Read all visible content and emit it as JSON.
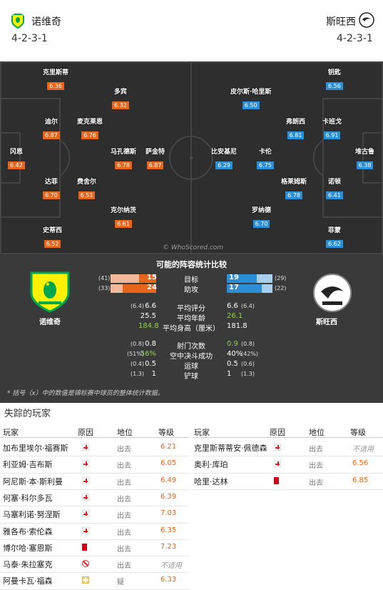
{
  "header": {
    "home": {
      "name": "诺维奇",
      "formation": "4-2-3-1"
    },
    "away": {
      "name": "斯旺西",
      "formation": "4-2-3-1"
    }
  },
  "pitch": {
    "watermark": "© WhoScored.com",
    "home_players": [
      {
        "name": "克里斯蒂",
        "rating": "6.36"
      },
      {
        "name": "多宾",
        "rating": "6.32"
      },
      {
        "name": "迪尔",
        "rating": "6.87"
      },
      {
        "name": "麦克莱恩",
        "rating": "6.76"
      },
      {
        "name": "冈恩",
        "rating": "6.42"
      },
      {
        "name": "马孔德斯",
        "rating": "6.78"
      },
      {
        "name": "萨金特",
        "rating": "6.87"
      },
      {
        "name": "达菲",
        "rating": "6.70"
      },
      {
        "name": "费舍尔",
        "rating": "6.51"
      },
      {
        "name": "克尔纳茨",
        "rating": "6.61"
      },
      {
        "name": "史蒂西",
        "rating": "6.52"
      }
    ],
    "away_players": [
      {
        "name": "钥匙",
        "rating": "6.56"
      },
      {
        "name": "皮尔斯·哈里斯",
        "rating": "6.50"
      },
      {
        "name": "弗朗西",
        "rating": "6.81"
      },
      {
        "name": "卡班戈",
        "rating": "6.91"
      },
      {
        "name": "比安基尼",
        "rating": "6.29"
      },
      {
        "name": "卡伦",
        "rating": "6.75"
      },
      {
        "name": "堆古鲁",
        "rating": "6.38"
      },
      {
        "name": "格莱姆斯",
        "rating": "6.78"
      },
      {
        "name": "诺顿",
        "rating": "6.41"
      },
      {
        "name": "罗纳德",
        "rating": "6.70"
      },
      {
        "name": "菲蒙",
        "rating": "6.62"
      }
    ]
  },
  "compare": {
    "title": "可能的阵容统计比较",
    "home_name": "诺维奇",
    "away_name": "斯旺西",
    "bars": [
      {
        "label": "目标",
        "home": "15",
        "home_total": "(41)",
        "away": "19",
        "away_total": "(29)",
        "home_frac": 0.37,
        "away_frac": 0.66
      },
      {
        "label": "助攻",
        "home": "24",
        "home_total": "(33)",
        "away": "17",
        "away_total": "(22)",
        "home_frac": 0.73,
        "away_frac": 0.77
      }
    ],
    "stats1": [
      {
        "label": "平均评分",
        "home": "6.6",
        "home_sub": "(6.4)",
        "away": "6.6",
        "away_sub": "(6.4)",
        "hl": "none"
      },
      {
        "label": "平均年龄",
        "home": "25.5",
        "home_sub": "",
        "away": "26.1",
        "away_sub": "",
        "hl": "away"
      },
      {
        "label": "平均身高（厘米）",
        "home": "184.8",
        "home_sub": "",
        "away": "181.8",
        "away_sub": "",
        "hl": "home"
      }
    ],
    "stats2": [
      {
        "label": "射门次数",
        "home": "0.8",
        "home_sub": "(0.8)",
        "away": "0.9",
        "away_sub": "(0.8)",
        "hl": "away"
      },
      {
        "label": "空中决斗成功",
        "home": "56%",
        "home_sub": "(51%)",
        "away": "40%",
        "away_sub": "(42%)",
        "hl": "home"
      },
      {
        "label": "运球",
        "home": "0.5",
        "home_sub": "(0.4)",
        "away": "0.5",
        "away_sub": "(0.6)",
        "hl": "none"
      },
      {
        "label": "铲球",
        "home": "1",
        "home_sub": "(1.3)",
        "away": "1",
        "away_sub": "(1.3)",
        "hl": "none"
      }
    ],
    "footnote": "* 括号（x）中的数值是锦标赛中球员的整体统计数据。"
  },
  "missing": {
    "title": "失踪的玩家",
    "headers": {
      "player": "玩家",
      "reason": "原因",
      "status": "地位",
      "rating": "等级"
    },
    "home": [
      {
        "name": "加布里埃尔·福赛斯",
        "reason": "injury",
        "status": "出去",
        "rating": "6.21"
      },
      {
        "name": "利亚姆·吉布斯",
        "reason": "injury",
        "status": "出去",
        "rating": "6.05"
      },
      {
        "name": "阿尼斯·本·斯利曼",
        "reason": "injury",
        "status": "出去",
        "rating": "6.49"
      },
      {
        "name": "何塞·科尔多瓦",
        "reason": "injury",
        "status": "出去",
        "rating": "6.39"
      },
      {
        "name": "马塞利诺·努涅斯",
        "reason": "injury",
        "status": "出去",
        "rating": "7.03"
      },
      {
        "name": "雅各布·索伦森",
        "reason": "injury",
        "status": "出去",
        "rating": "6.35"
      },
      {
        "name": "博尔哈·塞恩斯",
        "reason": "redcard",
        "status": "出去",
        "rating": "7.23"
      },
      {
        "name": "马泰·朱拉塞克",
        "reason": "banned",
        "status": "出去",
        "rating": "不适用"
      },
      {
        "name": "阿曼卡瓦·福森",
        "reason": "doubt",
        "status": "疑",
        "rating": "6.33"
      }
    ],
    "away": [
      {
        "name": "克里斯蒂蒂安·佩德森",
        "reason": "injury",
        "status": "出去",
        "rating": "不适用"
      },
      {
        "name": "奥利·库珀",
        "reason": "injury",
        "status": "出去",
        "rating": "6.56"
      },
      {
        "name": "哈里·达林",
        "reason": "redcard",
        "status": "出去",
        "rating": "6.85"
      }
    ]
  }
}
